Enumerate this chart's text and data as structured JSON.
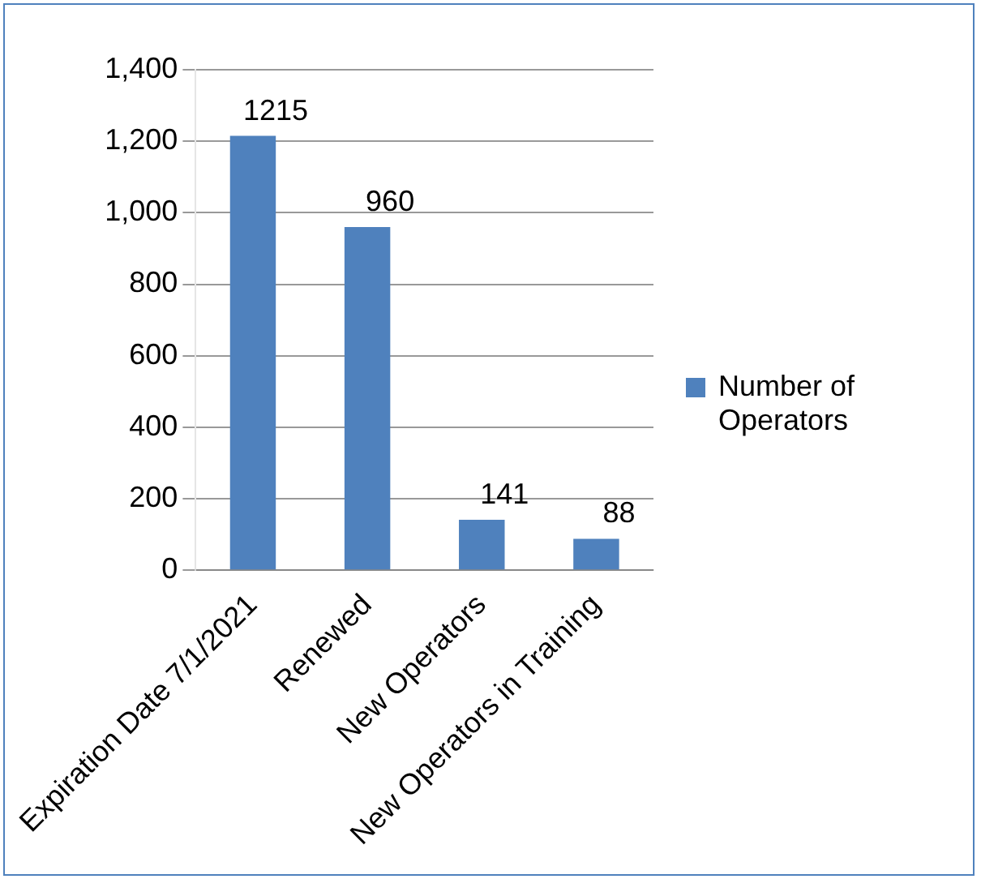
{
  "chart_data": {
    "type": "bar",
    "categories": [
      "Expiration Date 7/1/2021",
      "Renewed",
      "New Operators",
      "New Operators in Training"
    ],
    "series": [
      {
        "name": "Number of Operators",
        "color": "#4f81bd",
        "values": [
          1215,
          960,
          141,
          88
        ]
      }
    ],
    "ylim": [
      0,
      1400
    ],
    "yticks": [
      {
        "value": 0,
        "label": "0"
      },
      {
        "value": 200,
        "label": "200"
      },
      {
        "value": 400,
        "label": "400"
      },
      {
        "value": 600,
        "label": "600"
      },
      {
        "value": 800,
        "label": "800"
      },
      {
        "value": 1000,
        "label": "1,000"
      },
      {
        "value": 1200,
        "label": "1,200"
      },
      {
        "value": 1400,
        "label": "1,400"
      }
    ],
    "grid": "y",
    "legend": "right",
    "data_labels": true
  }
}
